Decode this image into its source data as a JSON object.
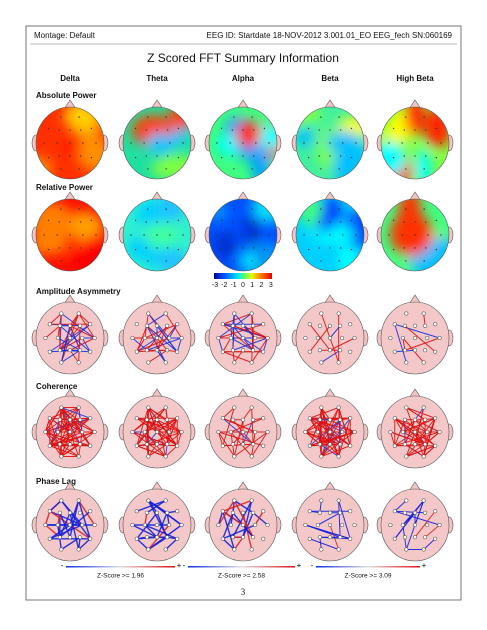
{
  "header": {
    "montage": "Montage:  Default",
    "eeg_id": "EEG ID:   Startdate 18-NOV-2012 3.001.01_EO EEG_fech SN:060169"
  },
  "title": "Z Scored FFT Summary Information",
  "columns": [
    "Delta",
    "Theta",
    "Alpha",
    "Beta",
    "High Beta"
  ],
  "rows": [
    "Absolute Power",
    "Relative Power",
    "Amplitude Asymmetry",
    "Coherence",
    "Phase Lag"
  ],
  "colorbar": {
    "ticks": [
      "-3",
      "-2",
      "-1",
      "0",
      "1",
      "2",
      "3"
    ]
  },
  "legends": [
    {
      "minus": "-",
      "label": "Z-Score >= 1.96",
      "plus": "+"
    },
    {
      "minus": "-",
      "label": "Z-Score >= 2.58",
      "plus": "+"
    },
    {
      "minus": "-",
      "label": "Z-Score >= 3.09",
      "plus": "+"
    }
  ],
  "page_number": "3"
}
